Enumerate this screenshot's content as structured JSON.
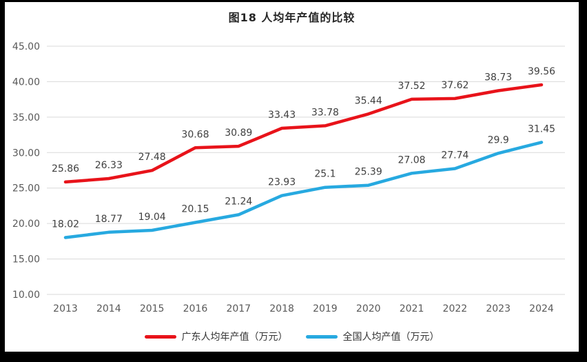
{
  "window": {
    "frame_color": "#000000",
    "background_color": "#ffffff"
  },
  "chart_data": {
    "type": "line",
    "title": "图18 人均年产值的比较",
    "categories": [
      "2013",
      "2014",
      "2015",
      "2016",
      "2017",
      "2018",
      "2019",
      "2020",
      "2021",
      "2022",
      "2023",
      "2024"
    ],
    "series": [
      {
        "name": "广东人均年产值（万元）",
        "color": "#e8131a",
        "values": [
          25.86,
          26.33,
          27.48,
          30.68,
          30.89,
          33.43,
          33.78,
          35.44,
          37.52,
          37.62,
          38.73,
          39.56
        ],
        "labels": [
          "25.86",
          "26.33",
          "27.48",
          "30.68",
          "30.89",
          "33.43",
          "33.78",
          "35.44",
          "37.52",
          "37.62",
          "38.73",
          "39.56"
        ]
      },
      {
        "name": "全国人均产值（万元）",
        "color": "#27a9e0",
        "values": [
          18.02,
          18.77,
          19.04,
          20.15,
          21.24,
          23.93,
          25.1,
          25.39,
          27.08,
          27.74,
          29.9,
          31.45
        ],
        "labels": [
          "18.02",
          "18.77",
          "19.04",
          "20.15",
          "21.24",
          "23.93",
          "25.1",
          "25.39",
          "27.08",
          "27.74",
          "29.9",
          "31.45"
        ]
      }
    ],
    "ylim": [
      10,
      45
    ],
    "yticks": [
      {
        "value": 45,
        "label": "45.00"
      },
      {
        "value": 40,
        "label": "40.00"
      },
      {
        "value": 35,
        "label": "35.00"
      },
      {
        "value": 30,
        "label": "30.00"
      },
      {
        "value": 25,
        "label": "25.00"
      },
      {
        "value": 20,
        "label": "20.00"
      },
      {
        "value": 15,
        "label": "15.00"
      },
      {
        "value": 10,
        "label": "10.00"
      }
    ],
    "grid": true,
    "legend_position": "bottom",
    "styles": {
      "gridline_color": "#d9d9d9",
      "axis_text_color": "#595959",
      "data_label_color": "#3f3f3f",
      "title_color": "#262626"
    }
  }
}
